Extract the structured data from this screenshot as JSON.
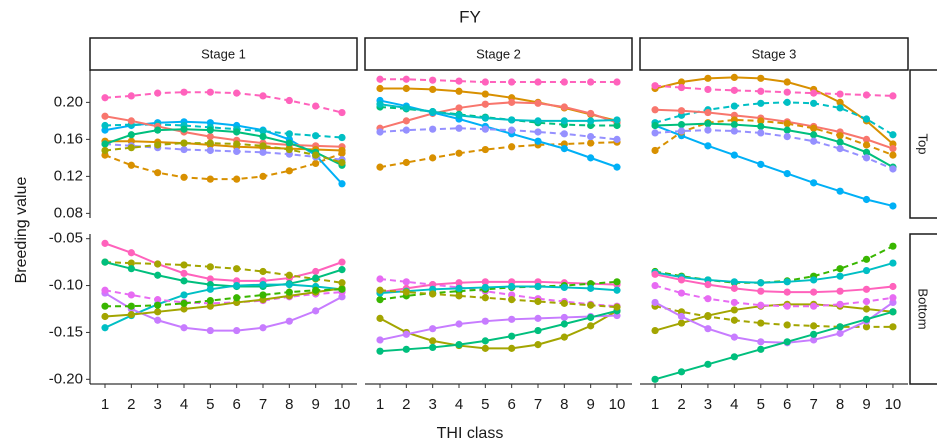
{
  "title": "FY",
  "x_label": "THI class",
  "y_label": "Breeding value",
  "columns": [
    "Stage 1",
    "Stage 2",
    "Stage 3"
  ],
  "rows": [
    {
      "label": "Top",
      "ylim": [
        0.075,
        0.235
      ],
      "yticks": [
        0.08,
        0.12,
        0.16,
        {
          "value": 0.2,
          "label": "0.20"
        }
      ]
    },
    {
      "label": "Bottom",
      "ylim": [
        -0.205,
        -0.045
      ],
      "yticks": [
        {
          "value": -0.2,
          "label": "-0.20"
        },
        -0.15,
        {
          "value": -0.1,
          "label": "-0.10"
        },
        -0.05
      ]
    }
  ],
  "x": [
    1,
    2,
    3,
    4,
    5,
    6,
    7,
    8,
    9,
    10
  ],
  "xlim": [
    0.43,
    10.57
  ],
  "xticks": [
    1,
    2,
    3,
    4,
    5,
    6,
    7,
    8,
    9,
    10
  ],
  "chart_data": [
    {
      "type": "line",
      "series": [
        {
          "color": "#FF62BC",
          "dash": true,
          "values": [
            0.205,
            0.207,
            0.21,
            0.211,
            0.211,
            0.21,
            0.207,
            0.202,
            0.196,
            0.189
          ]
        },
        {
          "color": "#D89000",
          "dash": true,
          "values": [
            0.143,
            0.132,
            0.124,
            0.119,
            0.117,
            0.117,
            0.12,
            0.126,
            0.134,
            0.145
          ]
        },
        {
          "color": "#00B0F6",
          "dash": false,
          "values": [
            0.17,
            0.175,
            0.178,
            0.179,
            0.178,
            0.175,
            0.17,
            0.16,
            0.143,
            0.112
          ]
        },
        {
          "color": "#00BFC4",
          "dash": true,
          "values": [
            0.175,
            0.176,
            0.176,
            0.175,
            0.173,
            0.171,
            0.169,
            0.166,
            0.164,
            0.162
          ]
        },
        {
          "color": "#F8766D",
          "dash": false,
          "values": [
            0.185,
            0.18,
            0.174,
            0.168,
            0.163,
            0.159,
            0.156,
            0.154,
            0.153,
            0.152
          ]
        },
        {
          "color": "#D89000",
          "dash": false,
          "values": [
            0.158,
            0.158,
            0.157,
            0.156,
            0.154,
            0.152,
            0.151,
            0.15,
            0.149,
            0.148
          ]
        },
        {
          "color": "#9590FF",
          "dash": true,
          "values": [
            0.155,
            0.153,
            0.151,
            0.149,
            0.148,
            0.147,
            0.146,
            0.144,
            0.141,
            0.138
          ]
        },
        {
          "color": "#00BF7D",
          "dash": false,
          "values": [
            0.155,
            0.165,
            0.17,
            0.171,
            0.17,
            0.168,
            0.163,
            0.156,
            0.146,
            0.132
          ]
        },
        {
          "color": "#A3A500",
          "dash": true,
          "values": [
            0.148,
            0.151,
            0.154,
            0.156,
            0.156,
            0.155,
            0.153,
            0.149,
            0.143,
            0.135
          ]
        }
      ]
    },
    {
      "type": "line",
      "series": [
        {
          "color": "#FF62BC",
          "dash": true,
          "values": [
            0.225,
            0.225,
            0.224,
            0.223,
            0.222,
            0.222,
            0.222,
            0.222,
            0.222,
            0.222
          ]
        },
        {
          "color": "#D89000",
          "dash": false,
          "values": [
            0.215,
            0.215,
            0.214,
            0.212,
            0.209,
            0.205,
            0.2,
            0.194,
            0.187,
            0.18
          ]
        },
        {
          "color": "#D89000",
          "dash": true,
          "values": [
            0.13,
            0.135,
            0.14,
            0.145,
            0.149,
            0.152,
            0.154,
            0.155,
            0.156,
            0.157
          ]
        },
        {
          "color": "#F8766D",
          "dash": false,
          "values": [
            0.172,
            0.18,
            0.188,
            0.194,
            0.198,
            0.2,
            0.199,
            0.195,
            0.188,
            0.178
          ]
        },
        {
          "color": "#00B0F6",
          "dash": false,
          "values": [
            0.202,
            0.196,
            0.189,
            0.182,
            0.174,
            0.166,
            0.158,
            0.15,
            0.14,
            0.13
          ]
        },
        {
          "color": "#00BF7D",
          "dash": true,
          "values": [
            0.195,
            0.193,
            0.19,
            0.187,
            0.184,
            0.181,
            0.178,
            0.176,
            0.175,
            0.175
          ]
        },
        {
          "color": "#9590FF",
          "dash": true,
          "values": [
            0.168,
            0.17,
            0.171,
            0.172,
            0.171,
            0.17,
            0.168,
            0.166,
            0.163,
            0.16
          ]
        },
        {
          "color": "#00BFC4",
          "dash": false,
          "values": [
            0.198,
            0.194,
            0.19,
            0.186,
            0.183,
            0.181,
            0.18,
            0.18,
            0.18,
            0.181
          ]
        }
      ]
    },
    {
      "type": "line",
      "series": [
        {
          "color": "#D89000",
          "dash": false,
          "values": [
            0.215,
            0.222,
            0.226,
            0.227,
            0.226,
            0.222,
            0.214,
            0.2,
            0.18,
            0.155
          ]
        },
        {
          "color": "#FF62BC",
          "dash": true,
          "values": [
            0.218,
            0.216,
            0.214,
            0.213,
            0.212,
            0.211,
            0.21,
            0.209,
            0.208,
            0.207
          ]
        },
        {
          "color": "#00B0F6",
          "dash": false,
          "values": [
            0.175,
            0.164,
            0.153,
            0.143,
            0.133,
            0.123,
            0.113,
            0.104,
            0.095,
            0.088
          ]
        },
        {
          "color": "#00BFC4",
          "dash": true,
          "values": [
            0.178,
            0.186,
            0.192,
            0.196,
            0.199,
            0.2,
            0.199,
            0.194,
            0.182,
            0.165
          ]
        },
        {
          "color": "#F8766D",
          "dash": false,
          "values": [
            0.192,
            0.191,
            0.189,
            0.186,
            0.183,
            0.179,
            0.174,
            0.168,
            0.16,
            0.15
          ]
        },
        {
          "color": "#D89000",
          "dash": true,
          "values": [
            0.148,
            0.168,
            0.178,
            0.181,
            0.18,
            0.177,
            0.172,
            0.164,
            0.154,
            0.143
          ]
        },
        {
          "color": "#00BF7D",
          "dash": false,
          "values": [
            0.175,
            0.176,
            0.177,
            0.176,
            0.174,
            0.17,
            0.165,
            0.157,
            0.146,
            0.13
          ]
        },
        {
          "color": "#9590FF",
          "dash": true,
          "values": [
            0.167,
            0.169,
            0.17,
            0.169,
            0.167,
            0.163,
            0.158,
            0.15,
            0.14,
            0.128
          ]
        }
      ]
    },
    {
      "type": "line",
      "series": [
        {
          "color": "#FF62BC",
          "dash": false,
          "values": [
            -0.055,
            -0.065,
            -0.077,
            -0.087,
            -0.093,
            -0.095,
            -0.095,
            -0.092,
            -0.085,
            -0.075
          ]
        },
        {
          "color": "#A3A500",
          "dash": true,
          "values": [
            -0.075,
            -0.076,
            -0.077,
            -0.078,
            -0.08,
            -0.082,
            -0.085,
            -0.089,
            -0.093,
            -0.097
          ]
        },
        {
          "color": "#00BF7D",
          "dash": false,
          "values": [
            -0.075,
            -0.082,
            -0.089,
            -0.095,
            -0.099,
            -0.101,
            -0.101,
            -0.098,
            -0.092,
            -0.083
          ]
        },
        {
          "color": "#00BFC4",
          "dash": false,
          "values": [
            -0.145,
            -0.132,
            -0.12,
            -0.11,
            -0.104,
            -0.1,
            -0.099,
            -0.099,
            -0.101,
            -0.104
          ]
        },
        {
          "color": "#C77CFF",
          "dash": false,
          "values": [
            -0.108,
            -0.125,
            -0.137,
            -0.145,
            -0.148,
            -0.148,
            -0.145,
            -0.138,
            -0.127,
            -0.112
          ]
        },
        {
          "color": "#E76BF3",
          "dash": true,
          "values": [
            -0.105,
            -0.11,
            -0.115,
            -0.118,
            -0.119,
            -0.118,
            -0.116,
            -0.112,
            -0.109,
            -0.107
          ]
        },
        {
          "color": "#A3A500",
          "dash": false,
          "values": [
            -0.133,
            -0.131,
            -0.128,
            -0.125,
            -0.122,
            -0.118,
            -0.115,
            -0.111,
            -0.107,
            -0.103
          ]
        },
        {
          "color": "#39B600",
          "dash": true,
          "values": [
            -0.122,
            -0.122,
            -0.121,
            -0.119,
            -0.116,
            -0.113,
            -0.11,
            -0.107,
            -0.105,
            -0.104
          ]
        }
      ]
    },
    {
      "type": "line",
      "series": [
        {
          "color": "#E76BF3",
          "dash": true,
          "values": [
            -0.093,
            -0.096,
            -0.099,
            -0.102,
            -0.106,
            -0.11,
            -0.114,
            -0.117,
            -0.12,
            -0.122
          ]
        },
        {
          "color": "#FF62BC",
          "dash": false,
          "values": [
            -0.107,
            -0.103,
            -0.099,
            -0.097,
            -0.096,
            -0.096,
            -0.096,
            -0.097,
            -0.098,
            -0.099
          ]
        },
        {
          "color": "#39B600",
          "dash": true,
          "values": [
            -0.115,
            -0.111,
            -0.108,
            -0.106,
            -0.104,
            -0.102,
            -0.101,
            -0.1,
            -0.098,
            -0.096
          ]
        },
        {
          "color": "#00BFC4",
          "dash": false,
          "values": [
            -0.108,
            -0.106,
            -0.104,
            -0.103,
            -0.102,
            -0.101,
            -0.101,
            -0.102,
            -0.103,
            -0.105
          ]
        },
        {
          "color": "#A3A500",
          "dash": false,
          "values": [
            -0.135,
            -0.15,
            -0.159,
            -0.164,
            -0.167,
            -0.167,
            -0.163,
            -0.155,
            -0.143,
            -0.127
          ]
        },
        {
          "color": "#C77CFF",
          "dash": false,
          "values": [
            -0.158,
            -0.152,
            -0.146,
            -0.141,
            -0.138,
            -0.136,
            -0.135,
            -0.134,
            -0.133,
            -0.132
          ]
        },
        {
          "color": "#00BF7D",
          "dash": false,
          "values": [
            -0.17,
            -0.168,
            -0.166,
            -0.163,
            -0.159,
            -0.154,
            -0.148,
            -0.141,
            -0.134,
            -0.127
          ]
        },
        {
          "color": "#A3A500",
          "dash": true,
          "values": [
            -0.105,
            -0.107,
            -0.109,
            -0.111,
            -0.113,
            -0.115,
            -0.117,
            -0.119,
            -0.121,
            -0.123
          ]
        }
      ]
    },
    {
      "type": "line",
      "series": [
        {
          "color": "#39B600",
          "dash": true,
          "values": [
            -0.085,
            -0.09,
            -0.094,
            -0.097,
            -0.097,
            -0.095,
            -0.09,
            -0.082,
            -0.072,
            -0.058
          ]
        },
        {
          "color": "#00BFC4",
          "dash": false,
          "values": [
            -0.086,
            -0.091,
            -0.094,
            -0.096,
            -0.097,
            -0.096,
            -0.094,
            -0.09,
            -0.084,
            -0.076
          ]
        },
        {
          "color": "#FF62BC",
          "dash": false,
          "values": [
            -0.088,
            -0.094,
            -0.099,
            -0.103,
            -0.106,
            -0.107,
            -0.107,
            -0.106,
            -0.104,
            -0.101
          ]
        },
        {
          "color": "#A3A500",
          "dash": false,
          "values": [
            -0.148,
            -0.14,
            -0.132,
            -0.126,
            -0.122,
            -0.12,
            -0.12,
            -0.122,
            -0.125,
            -0.128
          ]
        },
        {
          "color": "#A3A500",
          "dash": true,
          "values": [
            -0.122,
            -0.128,
            -0.133,
            -0.137,
            -0.14,
            -0.142,
            -0.143,
            -0.144,
            -0.144,
            -0.144
          ]
        },
        {
          "color": "#C77CFF",
          "dash": false,
          "values": [
            -0.118,
            -0.133,
            -0.146,
            -0.155,
            -0.16,
            -0.161,
            -0.158,
            -0.151,
            -0.138,
            -0.118
          ]
        },
        {
          "color": "#00BF7D",
          "dash": false,
          "values": [
            -0.2,
            -0.192,
            -0.184,
            -0.176,
            -0.168,
            -0.16,
            -0.152,
            -0.144,
            -0.136,
            -0.128
          ]
        },
        {
          "color": "#E76BF3",
          "dash": true,
          "values": [
            -0.1,
            -0.108,
            -0.114,
            -0.118,
            -0.121,
            -0.122,
            -0.122,
            -0.12,
            -0.117,
            -0.113
          ]
        }
      ]
    }
  ]
}
